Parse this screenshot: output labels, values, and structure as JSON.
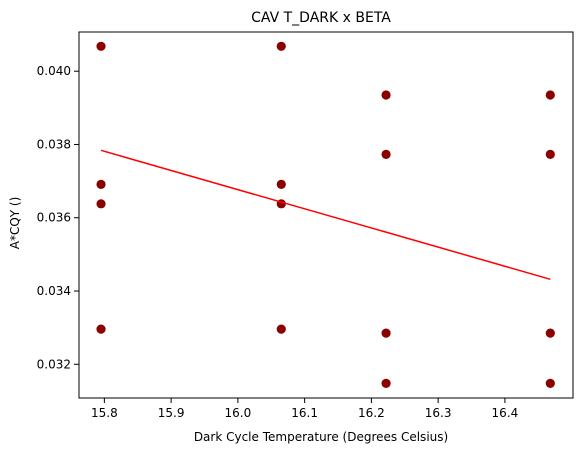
{
  "chart_data": {
    "type": "scatter",
    "title": "CAV T_DARK x BETA",
    "xlabel": "Dark Cycle Temperature (Degrees Celsius)",
    "ylabel": "A*CQY ()",
    "xlim": [
      15.762,
      16.502
    ],
    "ylim": [
      0.03108,
      0.04107
    ],
    "xticks": [
      15.8,
      15.9,
      16.0,
      16.1,
      16.2,
      16.3,
      16.4
    ],
    "xtick_labels": [
      "15.8",
      "15.9",
      "16.0",
      "16.1",
      "16.2",
      "16.3",
      "16.4"
    ],
    "yticks": [
      0.032,
      0.034,
      0.036,
      0.038,
      0.04
    ],
    "ytick_labels": [
      "0.032",
      "0.034",
      "0.036",
      "0.038",
      "0.040"
    ],
    "grid": false,
    "legend": "none",
    "points": [
      {
        "x": 15.795,
        "y": 0.04068
      },
      {
        "x": 15.795,
        "y": 0.03691
      },
      {
        "x": 15.795,
        "y": 0.03638
      },
      {
        "x": 15.795,
        "y": 0.03296
      },
      {
        "x": 16.065,
        "y": 0.04068
      },
      {
        "x": 16.065,
        "y": 0.03691
      },
      {
        "x": 16.065,
        "y": 0.03638
      },
      {
        "x": 16.065,
        "y": 0.03296
      },
      {
        "x": 16.222,
        "y": 0.03935
      },
      {
        "x": 16.222,
        "y": 0.03773
      },
      {
        "x": 16.222,
        "y": 0.03285
      },
      {
        "x": 16.222,
        "y": 0.03148
      },
      {
        "x": 16.468,
        "y": 0.03935
      },
      {
        "x": 16.468,
        "y": 0.03773
      },
      {
        "x": 16.468,
        "y": 0.03285
      },
      {
        "x": 16.468,
        "y": 0.03148
      }
    ],
    "trendline": [
      {
        "x": 15.795,
        "y": 0.03784
      },
      {
        "x": 16.468,
        "y": 0.03432
      }
    ],
    "point_color": "#8b0000",
    "trendline_color": "#ff0000"
  }
}
